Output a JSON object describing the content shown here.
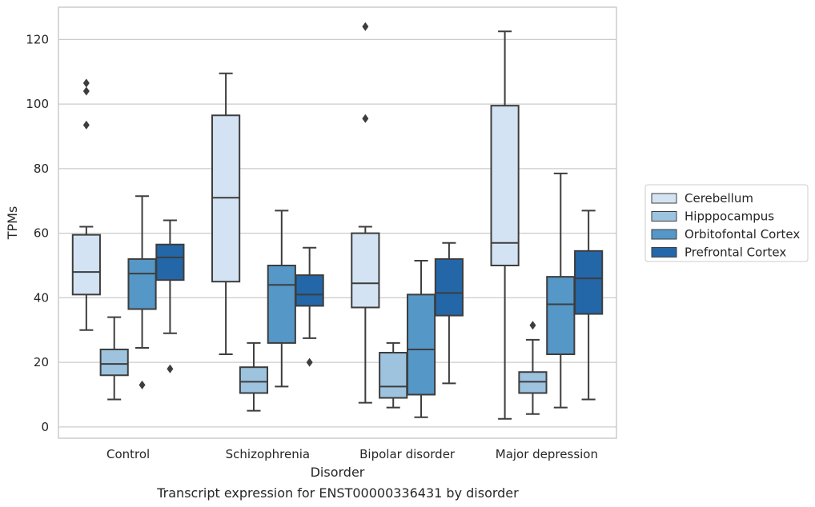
{
  "chart_data": {
    "type": "boxplot",
    "title": "Transcript expression for ENST00000336431 by disorder",
    "xlabel": "Disorder",
    "ylabel": "TPMs",
    "ylim": [
      -3.5,
      130
    ],
    "yticks": [
      0,
      20,
      40,
      60,
      80,
      100,
      120
    ],
    "grid": true,
    "legend_position": "right",
    "categories": [
      "Control",
      "Schizophrenia",
      "Bipolar disorder",
      "Major depression"
    ],
    "series": [
      {
        "name": "Cerebellum",
        "color": "#d4e3f3",
        "boxes": [
          {
            "whisker_low": 30,
            "q1": 41,
            "median": 48,
            "q3": 59.5,
            "whisker_high": 62,
            "outliers": [
              93.5,
              104,
              106.5
            ]
          },
          {
            "whisker_low": 22.5,
            "q1": 45,
            "median": 71,
            "q3": 96.5,
            "whisker_high": 109.5,
            "outliers": []
          },
          {
            "whisker_low": 7.5,
            "q1": 37,
            "median": 44.5,
            "q3": 60,
            "whisker_high": 62,
            "outliers": [
              95.5,
              124
            ]
          },
          {
            "whisker_low": 2.5,
            "q1": 50,
            "median": 57,
            "q3": 99.5,
            "whisker_high": 122.5,
            "outliers": []
          }
        ]
      },
      {
        "name": "Hipppocampus",
        "color": "#9dc3df",
        "boxes": [
          {
            "whisker_low": 8.5,
            "q1": 16,
            "median": 19.5,
            "q3": 24,
            "whisker_high": 34,
            "outliers": []
          },
          {
            "whisker_low": 5,
            "q1": 10.5,
            "median": 14,
            "q3": 18.5,
            "whisker_high": 26,
            "outliers": []
          },
          {
            "whisker_low": 6,
            "q1": 9,
            "median": 12.5,
            "q3": 23,
            "whisker_high": 26,
            "outliers": []
          },
          {
            "whisker_low": 4,
            "q1": 10.5,
            "median": 14,
            "q3": 17,
            "whisker_high": 27,
            "outliers": [
              31.5
            ]
          }
        ]
      },
      {
        "name": "Orbitofontal Cortex",
        "color": "#5597c7",
        "boxes": [
          {
            "whisker_low": 24.5,
            "q1": 36.5,
            "median": 47.5,
            "q3": 52,
            "whisker_high": 71.5,
            "outliers": [
              13
            ]
          },
          {
            "whisker_low": 12.5,
            "q1": 26,
            "median": 44,
            "q3": 50,
            "whisker_high": 67,
            "outliers": []
          },
          {
            "whisker_low": 3,
            "q1": 10,
            "median": 24,
            "q3": 41,
            "whisker_high": 51.5,
            "outliers": []
          },
          {
            "whisker_low": 6,
            "q1": 22.5,
            "median": 38,
            "q3": 46.5,
            "whisker_high": 78.5,
            "outliers": []
          }
        ]
      },
      {
        "name": "Prefrontal Cortex",
        "color": "#2367a9",
        "boxes": [
          {
            "whisker_low": 29,
            "q1": 45.5,
            "median": 52.5,
            "q3": 56.5,
            "whisker_high": 64,
            "outliers": [
              18
            ]
          },
          {
            "whisker_low": 27.5,
            "q1": 37.5,
            "median": 41,
            "q3": 47,
            "whisker_high": 55.5,
            "outliers": [
              20
            ]
          },
          {
            "whisker_low": 13.5,
            "q1": 34.5,
            "median": 41.5,
            "q3": 52,
            "whisker_high": 57,
            "outliers": []
          },
          {
            "whisker_low": 8.5,
            "q1": 35,
            "median": 46,
            "q3": 54.5,
            "whisker_high": 67,
            "outliers": []
          }
        ]
      }
    ]
  }
}
